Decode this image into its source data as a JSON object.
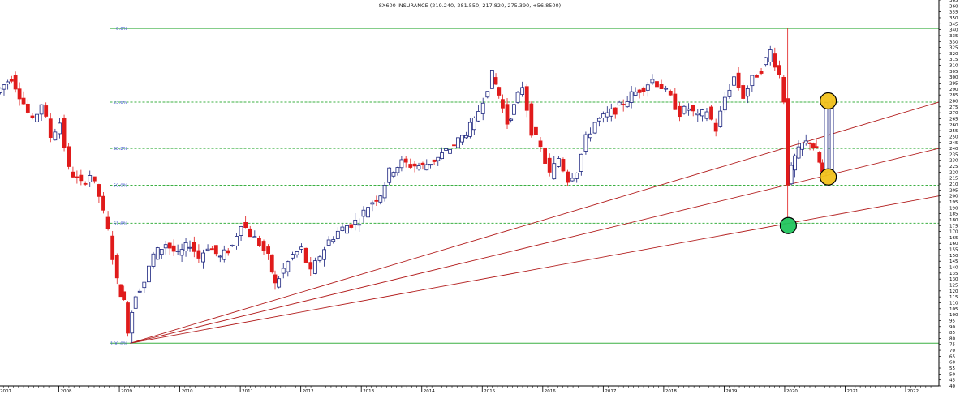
{
  "chart_data": {
    "type": "candlestick",
    "title": "SX600 INSURANCE (219.240, 281.550, 217.820, 275.390, +56.8500)",
    "ylim": [
      40,
      365
    ],
    "y_ticks": [
      365,
      360,
      355,
      350,
      345,
      340,
      335,
      330,
      325,
      320,
      315,
      310,
      305,
      300,
      295,
      290,
      285,
      280,
      275,
      270,
      265,
      260,
      255,
      250,
      245,
      240,
      235,
      230,
      225,
      220,
      215,
      210,
      205,
      200,
      195,
      190,
      185,
      180,
      175,
      170,
      165,
      160,
      155,
      150,
      145,
      140,
      135,
      130,
      125,
      120,
      115,
      110,
      105,
      100,
      95,
      90,
      85,
      80,
      75,
      70,
      65,
      60,
      55,
      50,
      45,
      40
    ],
    "x_year_labels": [
      "2007",
      "2008",
      "2009",
      "2010",
      "2011",
      "2012",
      "2013",
      "2014",
      "2015",
      "2016",
      "2017",
      "2018",
      "2019",
      "2020",
      "2021",
      "2022"
    ],
    "x_range": [
      2007.0,
      2022.55
    ],
    "fibonacci_levels": [
      {
        "label": "0.0%",
        "value": 341
      },
      {
        "label": "23.6%",
        "value": 279
      },
      {
        "label": "38.2%",
        "value": 240
      },
      {
        "label": "50.0%",
        "value": 209
      },
      {
        "label": "61.8%",
        "value": 177
      },
      {
        "label": "100.0%",
        "value": 76
      }
    ],
    "fan_lines": [
      {
        "from": [
          2009.18,
          76
        ],
        "to": [
          2022.55,
          279
        ]
      },
      {
        "from": [
          2009.18,
          76
        ],
        "to": [
          2022.55,
          240
        ]
      },
      {
        "from": [
          2009.18,
          76
        ],
        "to": [
          2022.55,
          200
        ]
      }
    ],
    "highlight_markers": [
      {
        "x": 2020.72,
        "y": 280,
        "color": "#f2c21b"
      },
      {
        "x": 2020.72,
        "y": 216,
        "color": "#f2c21b"
      },
      {
        "x": 2020.06,
        "y": 175,
        "color": "#22c55e"
      }
    ],
    "up_color": "#1a237e",
    "down_color": "#e01b1b",
    "fib_line_color": "#3cb043",
    "fan_line_color": "#b21c1c",
    "path": [
      [
        2007.0,
        287
      ],
      [
        2007.25,
        300
      ],
      [
        2007.45,
        278
      ],
      [
        2007.6,
        262
      ],
      [
        2007.75,
        278
      ],
      [
        2007.9,
        250
      ],
      [
        2008.05,
        262
      ],
      [
        2008.2,
        222
      ],
      [
        2008.4,
        210
      ],
      [
        2008.55,
        218
      ],
      [
        2008.7,
        200
      ],
      [
        2008.85,
        170
      ],
      [
        2009.0,
        128
      ],
      [
        2009.1,
        110
      ],
      [
        2009.18,
        88
      ],
      [
        2009.3,
        118
      ],
      [
        2009.45,
        128
      ],
      [
        2009.6,
        150
      ],
      [
        2009.8,
        160
      ],
      [
        2010.0,
        150
      ],
      [
        2010.2,
        160
      ],
      [
        2010.35,
        148
      ],
      [
        2010.5,
        158
      ],
      [
        2010.7,
        148
      ],
      [
        2010.9,
        158
      ],
      [
        2011.05,
        178
      ],
      [
        2011.2,
        168
      ],
      [
        2011.35,
        160
      ],
      [
        2011.5,
        148
      ],
      [
        2011.6,
        125
      ],
      [
        2011.75,
        138
      ],
      [
        2011.9,
        150
      ],
      [
        2012.05,
        155
      ],
      [
        2012.2,
        135
      ],
      [
        2012.35,
        150
      ],
      [
        2012.5,
        162
      ],
      [
        2012.65,
        170
      ],
      [
        2012.8,
        175
      ],
      [
        2013.0,
        180
      ],
      [
        2013.15,
        192
      ],
      [
        2013.35,
        202
      ],
      [
        2013.5,
        220
      ],
      [
        2013.7,
        228
      ],
      [
        2013.85,
        226
      ],
      [
        2014.05,
        225
      ],
      [
        2014.3,
        232
      ],
      [
        2014.5,
        240
      ],
      [
        2014.7,
        250
      ],
      [
        2014.9,
        262
      ],
      [
        2015.05,
        282
      ],
      [
        2015.2,
        302
      ],
      [
        2015.3,
        285
      ],
      [
        2015.45,
        262
      ],
      [
        2015.55,
        275
      ],
      [
        2015.7,
        293
      ],
      [
        2015.85,
        255
      ],
      [
        2016.0,
        240
      ],
      [
        2016.15,
        218
      ],
      [
        2016.3,
        232
      ],
      [
        2016.45,
        214
      ],
      [
        2016.6,
        222
      ],
      [
        2016.75,
        248
      ],
      [
        2016.9,
        262
      ],
      [
        2017.1,
        268
      ],
      [
        2017.3,
        275
      ],
      [
        2017.5,
        285
      ],
      [
        2017.7,
        292
      ],
      [
        2017.85,
        298
      ],
      [
        2018.0,
        292
      ],
      [
        2018.15,
        282
      ],
      [
        2018.3,
        270
      ],
      [
        2018.45,
        274
      ],
      [
        2018.6,
        266
      ],
      [
        2018.75,
        272
      ],
      [
        2018.9,
        256
      ],
      [
        2019.05,
        283
      ],
      [
        2019.2,
        300
      ],
      [
        2019.35,
        284
      ],
      [
        2019.5,
        298
      ],
      [
        2019.65,
        307
      ],
      [
        2019.8,
        322
      ],
      [
        2019.95,
        302
      ],
      [
        2020.02,
        281
      ],
      [
        2020.08,
        212
      ],
      [
        2020.2,
        232
      ],
      [
        2020.32,
        243
      ],
      [
        2020.45,
        246
      ],
      [
        2020.55,
        237
      ],
      [
        2020.65,
        219
      ],
      [
        2020.72,
        275
      ]
    ]
  }
}
